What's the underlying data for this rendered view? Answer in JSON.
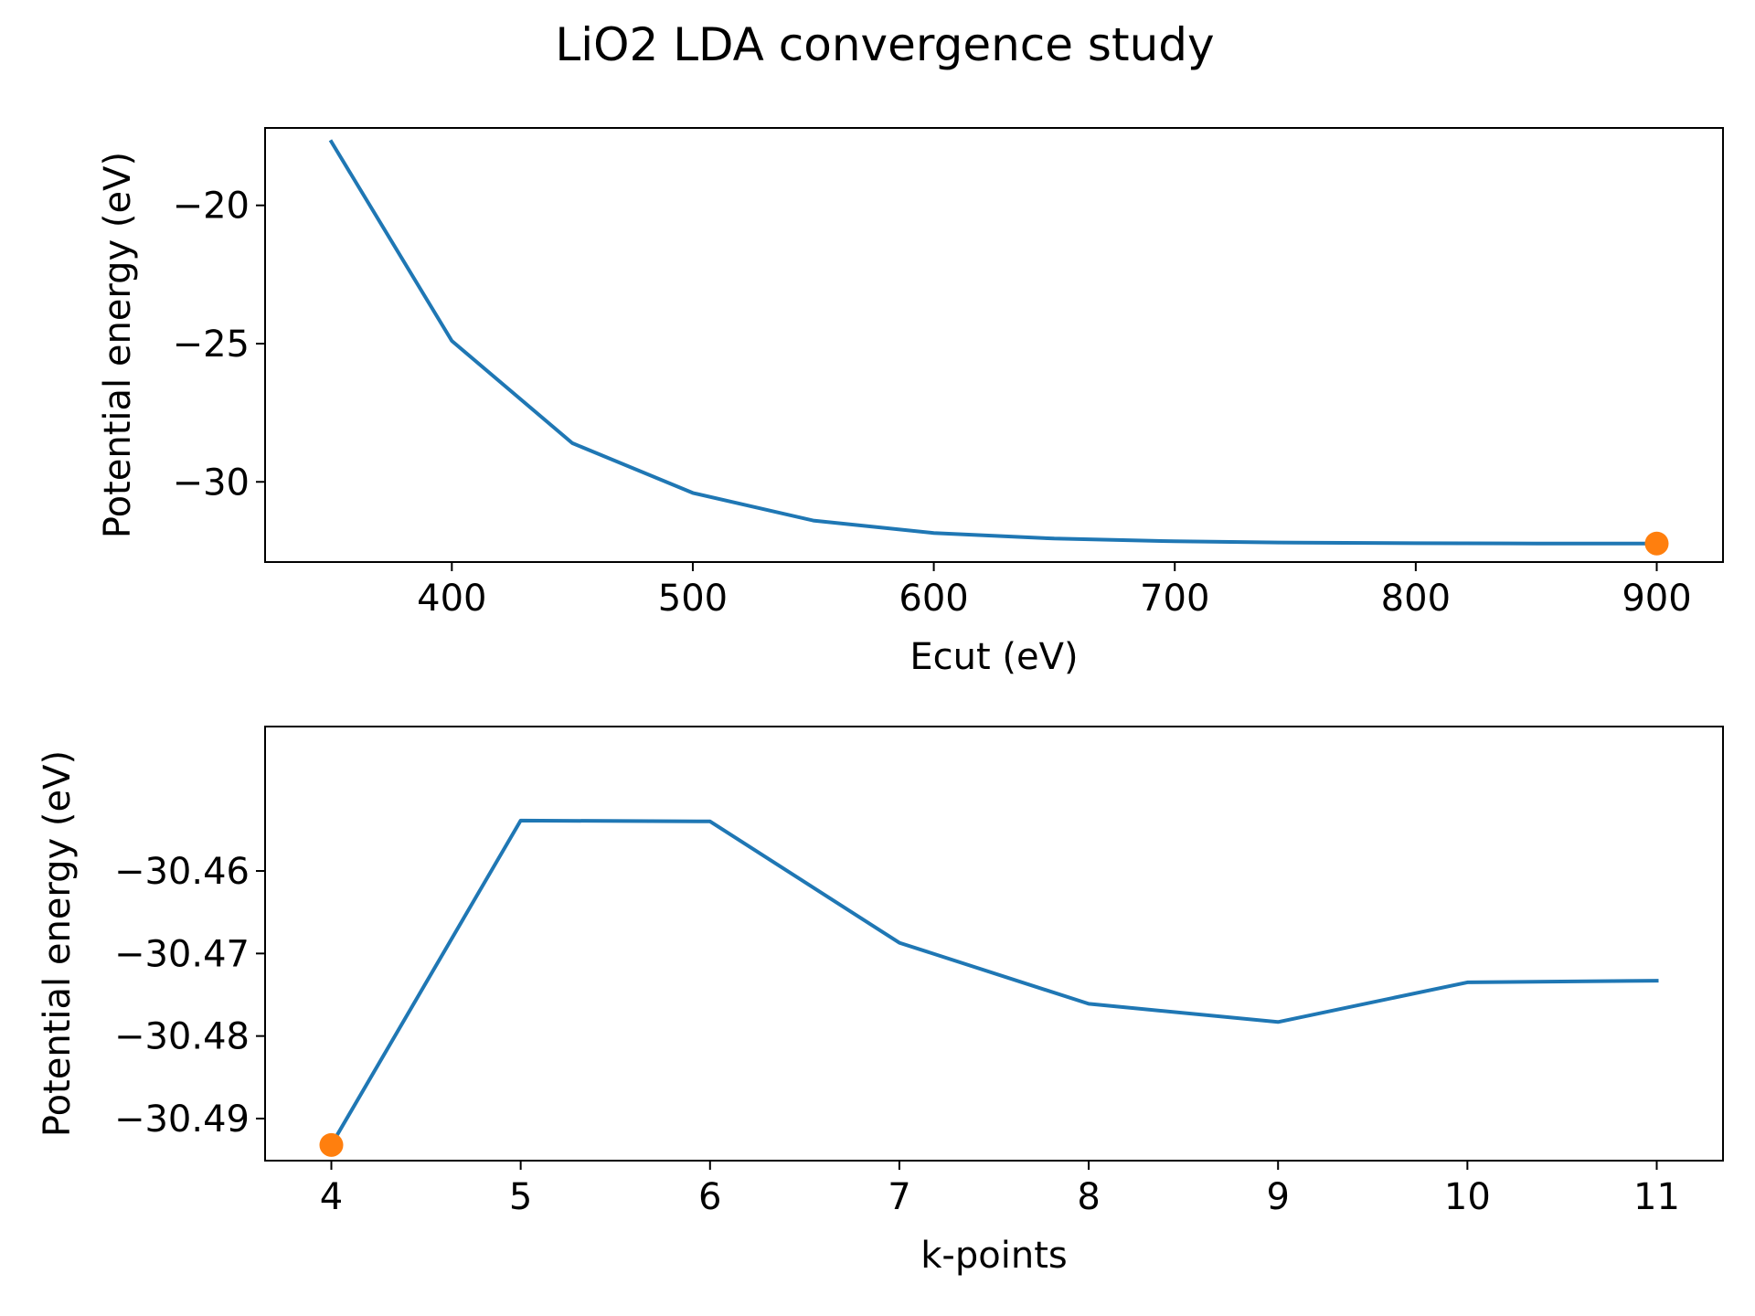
{
  "figure": {
    "title": "LiO2 LDA convergence study"
  },
  "chart_data": [
    {
      "type": "line",
      "title": "",
      "xlabel": "Ecut (eV)",
      "ylabel": "Potential energy (eV)",
      "xlim": [
        322.5,
        927.5
      ],
      "ylim": [
        -32.9,
        -17.2
      ],
      "xticks": [
        400,
        500,
        600,
        700,
        800,
        900
      ],
      "xtick_labels": [
        "400",
        "500",
        "600",
        "700",
        "800",
        "900"
      ],
      "yticks": [
        -20,
        -25,
        -30
      ],
      "ytick_labels": [
        "−20",
        "−25",
        "−30"
      ],
      "grid": false,
      "series": [
        {
          "color": "#1f77b4",
          "x": [
            350,
            400,
            450,
            500,
            550,
            600,
            650,
            700,
            750,
            800,
            850,
            900
          ],
          "y": [
            -17.7,
            -24.9,
            -28.6,
            -30.4,
            -31.4,
            -31.85,
            -32.05,
            -32.15,
            -32.2,
            -32.22,
            -32.23,
            -32.23
          ]
        }
      ],
      "highlight": {
        "color": "#ff7f0e",
        "x": 900,
        "y": -32.23
      }
    },
    {
      "type": "line",
      "title": "",
      "xlabel": "k-points",
      "ylabel": "Potential energy (eV)",
      "xlim": [
        3.65,
        11.35
      ],
      "ylim": [
        -30.4951,
        -30.4425
      ],
      "xticks": [
        4,
        5,
        6,
        7,
        8,
        9,
        10,
        11
      ],
      "xtick_labels": [
        "4",
        "5",
        "6",
        "7",
        "8",
        "9",
        "10",
        "11"
      ],
      "yticks": [
        -30.46,
        -30.47,
        -30.48,
        -30.49
      ],
      "ytick_labels": [
        "−30.46",
        "−30.47",
        "−30.48",
        "−30.49"
      ],
      "grid": false,
      "series": [
        {
          "color": "#1f77b4",
          "x": [
            4,
            5,
            6,
            7,
            8,
            9,
            10,
            11
          ],
          "y": [
            -30.4932,
            -30.4539,
            -30.454,
            -30.4687,
            -30.4761,
            -30.4783,
            -30.4735,
            -30.4733
          ]
        }
      ],
      "highlight": {
        "color": "#ff7f0e",
        "x": 4,
        "y": -30.4932
      }
    }
  ]
}
